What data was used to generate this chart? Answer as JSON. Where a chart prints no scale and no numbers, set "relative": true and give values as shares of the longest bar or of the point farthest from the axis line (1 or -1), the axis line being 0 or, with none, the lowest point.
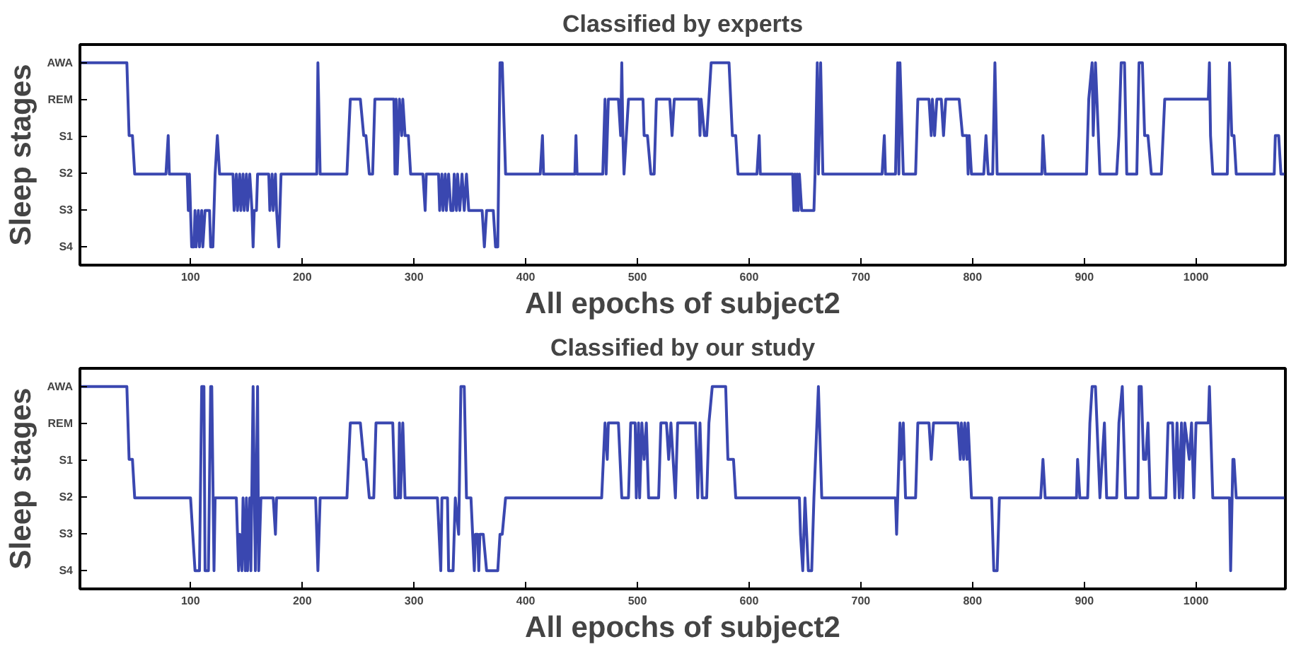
{
  "chart_data": [
    {
      "type": "line",
      "title": "Classified by experts",
      "xlabel": "All epochs of subject2",
      "ylabel": "Sleep stages",
      "relative": true,
      "xlim": [
        1,
        1080
      ],
      "xticks": [
        100,
        200,
        300,
        400,
        500,
        600,
        700,
        800,
        900,
        1000
      ],
      "annotations": [
        "AWA",
        "REM",
        "S1",
        "S2",
        "S3",
        "S4"
      ],
      "grid": false,
      "marker": "none",
      "line_style": "solid",
      "series": [
        {
          "color": "#3a47b0",
          "x": [
            1,
            43,
            45,
            48,
            50,
            78,
            80,
            81,
            97,
            98,
            99,
            101,
            103,
            104,
            105,
            107,
            108,
            110,
            111,
            113,
            117,
            118,
            120,
            122,
            124,
            126,
            138,
            139,
            141,
            142,
            144,
            145,
            147,
            148,
            150,
            151,
            153,
            155,
            156,
            157,
            159,
            160,
            170,
            171,
            173,
            174,
            176,
            177,
            179,
            181,
            213,
            214,
            216,
            240,
            243,
            252,
            255,
            257,
            260,
            263,
            265,
            282,
            283,
            284,
            285,
            287,
            289,
            290,
            292,
            295,
            297,
            308,
            310,
            311,
            322,
            323,
            325,
            326,
            328,
            329,
            331,
            333,
            335,
            336,
            338,
            339,
            341,
            343,
            345,
            347,
            349,
            353,
            361,
            363,
            365,
            371,
            373,
            375,
            377,
            379,
            382,
            413,
            415,
            416,
            444,
            445,
            446,
            469,
            471,
            472,
            474,
            483,
            485,
            486,
            487,
            488,
            492,
            505,
            506,
            509,
            512,
            515,
            517,
            529,
            531,
            533,
            555,
            556,
            557,
            560,
            562,
            566,
            582,
            585,
            588,
            590,
            607,
            609,
            610,
            639,
            640,
            641,
            642,
            643,
            644,
            645,
            647,
            658,
            659,
            661,
            662,
            664,
            666,
            719,
            721,
            722,
            731,
            733,
            734,
            735,
            738,
            749,
            751,
            761,
            763,
            764,
            766,
            768,
            772,
            774,
            776,
            788,
            791,
            795,
            796,
            797,
            799,
            810,
            812,
            814,
            818,
            820,
            822,
            862,
            863,
            865,
            902,
            904,
            907,
            908,
            910,
            914,
            929,
            931,
            933,
            936,
            938,
            947,
            949,
            952,
            954,
            957,
            960,
            969,
            972,
            1011,
            1012,
            1013,
            1015,
            1028,
            1030,
            1032,
            1034,
            1036,
            1070,
            1071,
            1074,
            1076,
            1079
          ],
          "values": [
            1,
            1,
            0.64,
            0.64,
            0.45,
            0.45,
            0.64,
            0.45,
            0.45,
            0.27,
            0.45,
            0.09,
            0.09,
            0.27,
            0.09,
            0.27,
            0.09,
            0.27,
            0.09,
            0.27,
            0.27,
            0.09,
            0.09,
            0.45,
            0.64,
            0.45,
            0.45,
            0.27,
            0.45,
            0.27,
            0.45,
            0.27,
            0.45,
            0.27,
            0.45,
            0.27,
            0.45,
            0.27,
            0.09,
            0.27,
            0.27,
            0.45,
            0.45,
            0.27,
            0.45,
            0.27,
            0.45,
            0.27,
            0.09,
            0.45,
            0.45,
            1,
            0.45,
            0.45,
            0.82,
            0.82,
            0.64,
            0.64,
            0.45,
            0.45,
            0.82,
            0.82,
            0.45,
            0.82,
            0.45,
            0.82,
            0.64,
            0.82,
            0.64,
            0.64,
            0.45,
            0.45,
            0.27,
            0.45,
            0.45,
            0.27,
            0.45,
            0.27,
            0.45,
            0.27,
            0.45,
            0.27,
            0.27,
            0.45,
            0.27,
            0.45,
            0.27,
            0.45,
            0.27,
            0.45,
            0.27,
            0.27,
            0.27,
            0.09,
            0.27,
            0.27,
            0.09,
            0.09,
            1,
            1,
            0.45,
            0.45,
            0.64,
            0.45,
            0.45,
            0.64,
            0.45,
            0.45,
            0.82,
            0.45,
            0.82,
            0.82,
            0.64,
            1,
            0.64,
            0.45,
            0.82,
            0.82,
            0.64,
            0.64,
            0.45,
            0.45,
            0.82,
            0.82,
            0.64,
            0.82,
            0.82,
            0.64,
            0.82,
            0.64,
            0.64,
            1,
            1,
            0.64,
            0.64,
            0.45,
            0.45,
            0.64,
            0.45,
            0.45,
            0.27,
            0.45,
            0.27,
            0.45,
            0.27,
            0.45,
            0.27,
            0.27,
            0.45,
            1,
            0.45,
            1,
            0.45,
            0.45,
            0.64,
            0.45,
            0.45,
            1,
            0.45,
            1,
            0.45,
            0.45,
            0.82,
            0.82,
            0.64,
            0.82,
            0.64,
            0.82,
            0.82,
            0.64,
            0.82,
            0.82,
            0.64,
            0.64,
            0.45,
            0.64,
            0.45,
            0.45,
            0.64,
            0.45,
            0.45,
            1,
            0.45,
            0.45,
            0.64,
            0.45,
            0.45,
            0.82,
            1,
            0.64,
            1,
            0.45,
            0.45,
            0.64,
            1,
            1,
            0.45,
            0.45,
            1,
            1,
            0.64,
            0.64,
            0.45,
            0.45,
            0.82,
            0.82,
            1,
            0.64,
            0.45,
            0.45,
            1,
            0.64,
            0.64,
            0.45,
            0.45,
            0.64,
            0.64,
            0.45,
            0.45
          ]
        }
      ]
    },
    {
      "type": "line",
      "title": "Classified by our study",
      "xlabel": "All epochs of subject2",
      "ylabel": "Sleep stages",
      "relative": true,
      "xlim": [
        1,
        1080
      ],
      "xticks": [
        100,
        200,
        300,
        400,
        500,
        600,
        700,
        800,
        900,
        1000
      ],
      "annotations": [
        "AWA",
        "REM",
        "S1",
        "S2",
        "S3",
        "S4"
      ],
      "grid": false,
      "marker": "none",
      "line_style": "solid",
      "series": [
        {
          "color": "#3a47b0",
          "x": [
            1,
            43,
            45,
            48,
            50,
            100,
            102,
            104,
            108,
            110,
            112,
            113,
            116,
            118,
            119,
            121,
            122,
            141,
            143,
            144,
            146,
            147,
            149,
            150,
            151,
            153,
            154,
            156,
            158,
            160,
            161,
            163,
            174,
            176,
            177,
            212,
            214,
            216,
            240,
            243,
            252,
            255,
            257,
            260,
            264,
            266,
            281,
            283,
            286,
            287,
            288,
            290,
            292,
            321,
            324,
            325,
            330,
            331,
            335,
            337,
            340,
            342,
            345,
            347,
            351,
            354,
            355,
            357,
            358,
            359,
            362,
            365,
            375,
            377,
            379,
            382,
            468,
            471,
            473,
            474,
            483,
            486,
            492,
            494,
            498,
            499,
            501,
            502,
            504,
            506,
            508,
            510,
            519,
            521,
            526,
            528,
            530,
            534,
            536,
            552,
            554,
            556,
            558,
            562,
            564,
            567,
            579,
            581,
            586,
            588,
            645,
            646,
            648,
            650,
            653,
            656,
            658,
            662,
            665,
            731,
            732,
            735,
            736,
            738,
            740,
            749,
            751,
            761,
            763,
            765,
            787,
            789,
            790,
            792,
            793,
            795,
            796,
            799,
            817,
            819,
            822,
            824,
            861,
            863,
            865,
            893,
            894,
            896,
            903,
            905,
            907,
            910,
            914,
            918,
            920,
            929,
            931,
            934,
            937,
            948,
            949,
            951,
            953,
            955,
            957,
            959,
            973,
            975,
            979,
            981,
            983,
            985,
            987,
            988,
            990,
            994,
            996,
            998,
            1000,
            1011,
            1012,
            1015,
            1030,
            1031,
            1033,
            1034,
            1036,
            1079
          ],
          "values": [
            1,
            1,
            0.64,
            0.64,
            0.45,
            0.45,
            0.27,
            0.09,
            0.09,
            1,
            1,
            0.09,
            0.09,
            1,
            1,
            0.09,
            0.45,
            0.45,
            0.09,
            0.27,
            0.09,
            0.45,
            0.09,
            0.45,
            0.09,
            0.45,
            0.09,
            1,
            0.09,
            1,
            0.09,
            0.45,
            0.45,
            0.27,
            0.45,
            0.45,
            0.09,
            0.45,
            0.45,
            0.82,
            0.82,
            0.64,
            0.64,
            0.45,
            0.45,
            0.82,
            0.82,
            0.45,
            0.45,
            0.82,
            0.45,
            0.82,
            0.45,
            0.45,
            0.09,
            0.45,
            0.45,
            0.09,
            0.09,
            0.45,
            0.27,
            1,
            1,
            0.45,
            0.45,
            0.09,
            0.27,
            0.27,
            0.09,
            0.27,
            0.27,
            0.09,
            0.09,
            0.27,
            0.27,
            0.45,
            0.45,
            0.82,
            0.64,
            0.82,
            0.82,
            0.45,
            0.45,
            0.82,
            0.82,
            0.45,
            0.82,
            0.45,
            0.82,
            0.64,
            0.82,
            0.45,
            0.45,
            0.82,
            0.82,
            0.64,
            0.82,
            0.45,
            0.82,
            0.82,
            0.45,
            0.82,
            0.45,
            0.45,
            0.82,
            1,
            1,
            0.64,
            0.64,
            0.45,
            0.45,
            0.27,
            0.09,
            0.45,
            0.09,
            0.09,
            0.45,
            1,
            0.45,
            0.45,
            0.27,
            0.82,
            0.64,
            0.82,
            0.45,
            0.45,
            0.82,
            0.82,
            0.64,
            0.82,
            0.82,
            0.64,
            0.82,
            0.64,
            0.82,
            0.64,
            0.82,
            0.45,
            0.45,
            0.09,
            0.09,
            0.45,
            0.45,
            0.64,
            0.45,
            0.45,
            0.64,
            0.45,
            0.45,
            0.82,
            1,
            1,
            0.45,
            0.82,
            0.45,
            0.45,
            0.82,
            1,
            0.45,
            0.45,
            1,
            1,
            0.64,
            0.64,
            0.82,
            0.45,
            0.45,
            0.82,
            0.82,
            0.45,
            0.82,
            0.45,
            0.82,
            0.45,
            0.82,
            0.64,
            0.82,
            0.45,
            0.82,
            0.82,
            1,
            0.45,
            0.45,
            0.09,
            0.64,
            0.64,
            0.45,
            0.45
          ]
        }
      ]
    }
  ]
}
